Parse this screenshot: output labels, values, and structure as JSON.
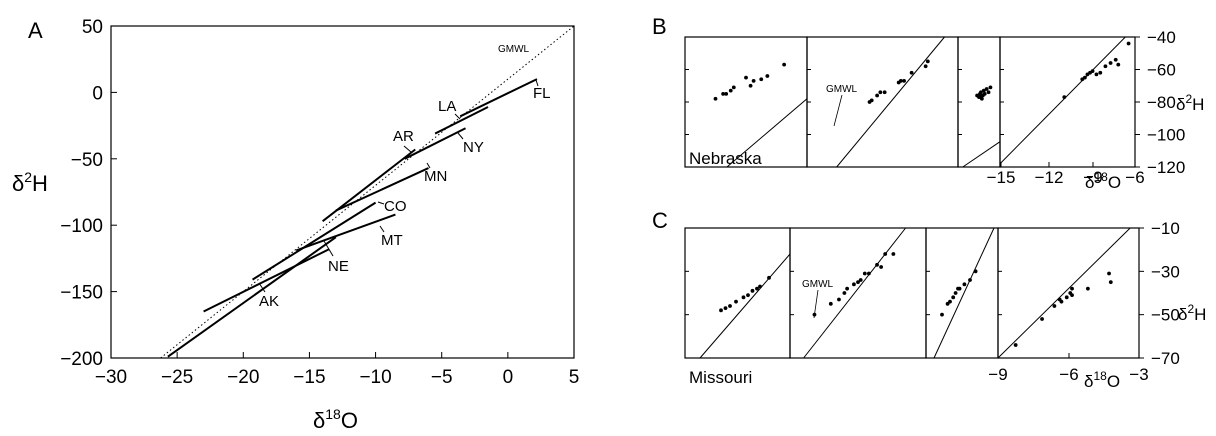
{
  "chart_data": [
    {
      "panel": "A",
      "type": "line",
      "xlabel": "δ18O",
      "ylabel": "δ2H",
      "xlim": [
        -30,
        5
      ],
      "ylim": [
        -200,
        50
      ],
      "xticks": [
        "−30",
        "−25",
        "−20",
        "−15",
        "−10",
        "−5",
        "0",
        "5"
      ],
      "yticks": [
        "50",
        "0",
        "−50",
        "−100",
        "−150",
        "−200"
      ],
      "reference_line": {
        "name": "GMWL",
        "style": "dotted",
        "x": [
          -26.25,
          5
        ],
        "y": [
          -200,
          50
        ]
      },
      "series": [
        {
          "name": "FL",
          "x": [
            -3.6,
            2.2
          ],
          "y": [
            -18,
            10
          ]
        },
        {
          "name": "LA",
          "x": [
            -5.5,
            -1.5
          ],
          "y": [
            -31,
            -11
          ]
        },
        {
          "name": "NY",
          "x": [
            -7.8,
            -3.2
          ],
          "y": [
            -50,
            -27
          ]
        },
        {
          "name": "AR",
          "x": [
            -14,
            -7
          ],
          "y": [
            -97,
            -43
          ]
        },
        {
          "name": "MN",
          "x": [
            -13,
            -6
          ],
          "y": [
            -89,
            -57
          ]
        },
        {
          "name": "CO",
          "x": [
            -19.3,
            -10
          ],
          "y": [
            -141,
            -83
          ]
        },
        {
          "name": "MT",
          "x": [
            -16,
            -8.5
          ],
          "y": [
            -119,
            -92
          ]
        },
        {
          "name": "NE",
          "x": [
            -25.7,
            -13
          ],
          "y": [
            -199,
            -109
          ]
        },
        {
          "name": "AK",
          "x": [
            -23,
            -13.5
          ],
          "y": [
            -165,
            -118
          ]
        }
      ],
      "point_labels": [
        "FL",
        "LA",
        "NY",
        "AR",
        "MN",
        "CO",
        "MT",
        "NE",
        "AK",
        "GMWL"
      ]
    },
    {
      "panel": "B",
      "type": "scatter",
      "place": "Nebraska",
      "xlabel": "δ18O",
      "ylabel": "δ2H",
      "ylim": [
        -120,
        -40
      ],
      "xticks": [
        "−15",
        "−12",
        "−9",
        "−6"
      ],
      "yticks": [
        "−40",
        "−60",
        "−80",
        "−100",
        "−120"
      ],
      "gmwl_label": "GMWL",
      "subpanels": [
        {
          "xlim": [
            -19,
            -11
          ],
          "points": [
            [
              -17.0,
              -78
            ],
            [
              -16.5,
              -75
            ],
            [
              -16.3,
              -75
            ],
            [
              -16.0,
              -73
            ],
            [
              -15.8,
              -71
            ],
            [
              -15.0,
              -65
            ],
            [
              -14.7,
              -70
            ],
            [
              -14.5,
              -67
            ],
            [
              -14.0,
              -66
            ],
            [
              -13.6,
              -64
            ],
            [
              -12.5,
              -57
            ]
          ]
        },
        {
          "xlim": [
            -19,
            -5
          ],
          "points": [
            [
              -13.2,
              -80
            ],
            [
              -13.0,
              -79
            ],
            [
              -12.5,
              -76
            ],
            [
              -12.2,
              -74
            ],
            [
              -11.8,
              -74
            ],
            [
              -10.5,
              -68
            ],
            [
              -10.3,
              -67
            ],
            [
              -10.0,
              -67
            ],
            [
              -9.3,
              -62
            ],
            [
              -8.0,
              -58
            ],
            [
              -7.8,
              -55
            ]
          ]
        },
        {
          "xlim": [
            -16.5,
            -14.3
          ],
          "points": [
            [
              -15.5,
              -76
            ],
            [
              -15.4,
              -77
            ],
            [
              -15.35,
              -75
            ],
            [
              -15.3,
              -74
            ],
            [
              -15.25,
              -78
            ],
            [
              -15.2,
              -76
            ],
            [
              -15.15,
              -73
            ],
            [
              -15.1,
              -75
            ],
            [
              -15.0,
              -72
            ],
            [
              -14.9,
              -74
            ],
            [
              -14.8,
              -71
            ],
            [
              -15.3,
              -77
            ]
          ]
        },
        {
          "xlim": [
            -16,
            -5.5
          ],
          "points": [
            [
              -11.0,
              -77
            ],
            [
              -9.6,
              -66
            ],
            [
              -9.4,
              -65
            ],
            [
              -9.2,
              -63
            ],
            [
              -9.0,
              -62
            ],
            [
              -8.8,
              -61
            ],
            [
              -8.5,
              -63
            ],
            [
              -8.2,
              -62
            ],
            [
              -7.8,
              -58
            ],
            [
              -7.4,
              -56
            ],
            [
              -7.0,
              -54
            ],
            [
              -6.8,
              -57
            ],
            [
              -6.0,
              -44
            ]
          ]
        }
      ]
    },
    {
      "panel": "C",
      "type": "scatter",
      "place": "Missouri",
      "xlabel": "δ18O",
      "ylabel": "δ2H",
      "ylim": [
        -70,
        -10
      ],
      "xticks": [
        "−9",
        "−6",
        "−3"
      ],
      "yticks": [
        "−10",
        "−30",
        "−50",
        "−70"
      ],
      "gmwl_label": "GMWL",
      "subpanels": [
        {
          "xlim": [
            -11,
            -4
          ],
          "points": [
            [
              -8.6,
              -48
            ],
            [
              -8.3,
              -47
            ],
            [
              -8.0,
              -46
            ],
            [
              -7.6,
              -44
            ],
            [
              -7.1,
              -42
            ],
            [
              -6.8,
              -41
            ],
            [
              -6.5,
              -39
            ],
            [
              -6.2,
              -38
            ],
            [
              -6.0,
              -37
            ],
            [
              -5.4,
              -33
            ]
          ]
        },
        {
          "xlim": [
            -11,
            -1
          ],
          "points": [
            [
              -9.2,
              -50
            ],
            [
              -8.0,
              -45
            ],
            [
              -7.4,
              -43
            ],
            [
              -7.0,
              -40
            ],
            [
              -6.8,
              -38
            ],
            [
              -6.3,
              -36
            ],
            [
              -6.0,
              -35
            ],
            [
              -5.8,
              -34
            ],
            [
              -5.5,
              -31
            ],
            [
              -5.2,
              -31
            ],
            [
              -4.6,
              -27
            ],
            [
              -4.3,
              -28
            ],
            [
              -4.0,
              -22
            ],
            [
              -3.4,
              -22
            ]
          ]
        },
        {
          "xlim": [
            -11,
            -2
          ],
          "points": [
            [
              -9.0,
              -50
            ],
            [
              -8.3,
              -45
            ],
            [
              -8.0,
              -44
            ],
            [
              -7.6,
              -42
            ],
            [
              -7.3,
              -40
            ],
            [
              -7.0,
              -38
            ],
            [
              -6.8,
              -38
            ],
            [
              -6.2,
              -36
            ],
            [
              -5.5,
              -34
            ],
            [
              -4.8,
              -30
            ]
          ]
        },
        {
          "xlim": [
            -10,
            -2
          ],
          "points": [
            [
              -9.0,
              -64
            ],
            [
              -7.5,
              -52
            ],
            [
              -6.8,
              -46
            ],
            [
              -6.5,
              -43
            ],
            [
              -6.4,
              -44
            ],
            [
              -6.1,
              -42
            ],
            [
              -5.9,
              -40
            ],
            [
              -5.8,
              -41
            ],
            [
              -5.8,
              -38
            ],
            [
              -4.9,
              -38
            ],
            [
              -3.7,
              -31
            ],
            [
              -3.6,
              -35
            ]
          ]
        }
      ]
    }
  ]
}
